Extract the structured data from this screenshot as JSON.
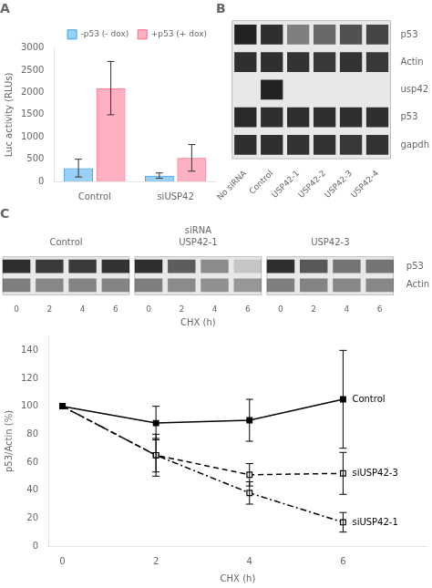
{
  "chart_data": [
    {
      "type": "bar",
      "title": "A",
      "categories": [
        "Control",
        "siUSP42"
      ],
      "ylabel": "Luc activity (RLUs)",
      "series": [
        {
          "name": "-p53 (- dox)",
          "values": [
            300,
            130
          ],
          "errors": [
            200,
            60
          ]
        },
        {
          "name": "+p53 (+ dox)",
          "values": [
            2100,
            530
          ],
          "errors": [
            600,
            300
          ]
        }
      ],
      "ylim": [
        0,
        3000
      ],
      "yticks": [
        0,
        500,
        1000,
        1500,
        2000,
        2500,
        3000
      ],
      "grid": false,
      "legend": "upper right"
    },
    {
      "type": "heatmap",
      "title": "B",
      "categories": [
        "No siRNA",
        "Control",
        "USP42-1",
        "USP42-2",
        "USP42-3",
        "USP42-4"
      ],
      "rows": [
        "p53",
        "Actin",
        "usp42",
        "p53",
        "gapdh"
      ],
      "cells": [
        [
          0.85,
          0.8,
          0.45,
          0.55,
          0.65,
          0.7
        ],
        [
          0.8,
          0.8,
          0.78,
          0.76,
          0.78,
          0.76
        ],
        [
          0.0,
          0.85,
          0.0,
          0.0,
          0.0,
          0.0
        ],
        [
          0.82,
          0.8,
          0.8,
          0.8,
          0.8,
          0.8
        ],
        [
          0.8,
          0.8,
          0.78,
          0.78,
          0.76,
          0.78
        ]
      ]
    },
    {
      "type": "heatmap",
      "title": "C",
      "xlabel": "CHX (h)",
      "group_label": "siRNA",
      "categories": [
        "0",
        "2",
        "4",
        "6"
      ],
      "rows": [
        "p53",
        "Actin"
      ],
      "groups": [
        {
          "name": "Control",
          "cells": [
            [
              0.8,
              0.75,
              0.75,
              0.78
            ],
            [
              0.45,
              0.42,
              0.43,
              0.43
            ]
          ]
        },
        {
          "name": "USP42-1",
          "cells": [
            [
              0.8,
              0.6,
              0.4,
              0.15
            ],
            [
              0.45,
              0.4,
              0.38,
              0.35
            ]
          ]
        },
        {
          "name": "USP42-3",
          "cells": [
            [
              0.8,
              0.62,
              0.5,
              0.5
            ],
            [
              0.45,
              0.43,
              0.42,
              0.42
            ]
          ]
        }
      ]
    },
    {
      "type": "line",
      "xlabel": "CHX (h)",
      "ylabel": "p53/Actin (%)",
      "x": [
        0,
        2,
        4,
        6
      ],
      "xlim": [
        -0.3,
        7.8
      ],
      "xticks": [
        0,
        2,
        4,
        6
      ],
      "ylim": [
        0,
        150
      ],
      "yticks": [
        0,
        20,
        40,
        60,
        80,
        100,
        120,
        140
      ],
      "grid": false,
      "series": [
        {
          "name": "Control",
          "color": "#000000",
          "marker": "square",
          "line_style": "solid",
          "values": [
            100,
            88,
            90,
            105
          ],
          "errors": [
            0,
            12,
            15,
            35
          ]
        },
        {
          "name": "siUSP42-3",
          "color": "#000000",
          "marker": "open_square",
          "line_style": "dashed",
          "values": [
            100,
            65,
            51,
            52
          ],
          "errors": [
            0,
            12,
            8,
            15
          ]
        },
        {
          "name": "siUSP42-1",
          "color": "#000000",
          "marker": "open_square",
          "line_style": "dashdot",
          "values": [
            100,
            65,
            38,
            17
          ],
          "errors": [
            0,
            15,
            8,
            7
          ]
        }
      ]
    }
  ]
}
